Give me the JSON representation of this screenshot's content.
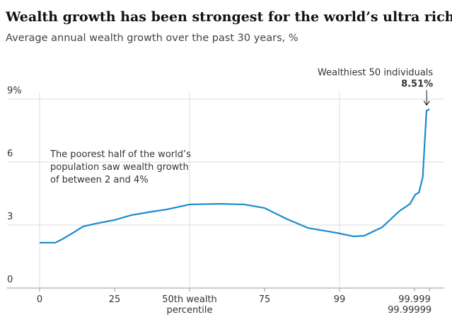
{
  "chart_data": {
    "type": "line",
    "title": "Wealth growth has been strongest for the world’s ultra rich",
    "subtitle": "Average annual wealth growth over the past 30 years, %",
    "annotation": [
      "The poorest half of the world’s",
      "population saw wealth growth",
      "of between 2 and 4%"
    ],
    "highlight_label": "Wealthiest 50 individuals",
    "x": [
      0,
      0.21,
      0.32,
      0.46,
      0.58,
      0.75,
      1.0,
      1.22,
      1.5,
      1.69,
      2.0,
      2.4,
      2.73,
      3.0,
      3.29,
      3.58,
      3.91,
      4.0,
      4.19,
      4.33,
      4.57,
      4.8,
      4.94,
      5.01,
      5.06,
      5.11,
      5.16,
      5.2
    ],
    "series": [
      {
        "name": "Average annual wealth growth",
        "color": "#1a8bd0",
        "values": [
          2.16,
          2.16,
          2.36,
          2.66,
          2.93,
          3.07,
          3.24,
          3.47,
          3.64,
          3.74,
          3.98,
          4.01,
          3.98,
          3.81,
          3.3,
          2.86,
          2.66,
          2.6,
          2.46,
          2.49,
          2.9,
          3.67,
          4.01,
          4.45,
          4.55,
          5.29,
          8.45,
          8.51
        ],
        "value_labels": [
          null,
          null,
          null,
          null,
          null,
          null,
          null,
          null,
          null,
          null,
          null,
          null,
          null,
          null,
          null,
          null,
          null,
          null,
          null,
          null,
          null,
          null,
          null,
          null,
          null,
          null,
          null,
          "8.51%"
        ]
      }
    ],
    "xlim": [
      0,
      5.2
    ],
    "xticks": [
      {
        "value": 0,
        "label": "0"
      },
      {
        "value": 1,
        "label": "25"
      },
      {
        "value": 2,
        "label": "50th wealth percentile"
      },
      {
        "value": 3,
        "label": "75"
      },
      {
        "value": 4,
        "label": "99"
      },
      {
        "value": 5,
        "label": "99.999"
      },
      {
        "value": 5.2,
        "label": "99.99999"
      }
    ],
    "ylim": [
      0,
      9
    ],
    "yticks": [
      0,
      3,
      6,
      {
        "value": 9,
        "label": "9%"
      }
    ],
    "grid": true
  }
}
